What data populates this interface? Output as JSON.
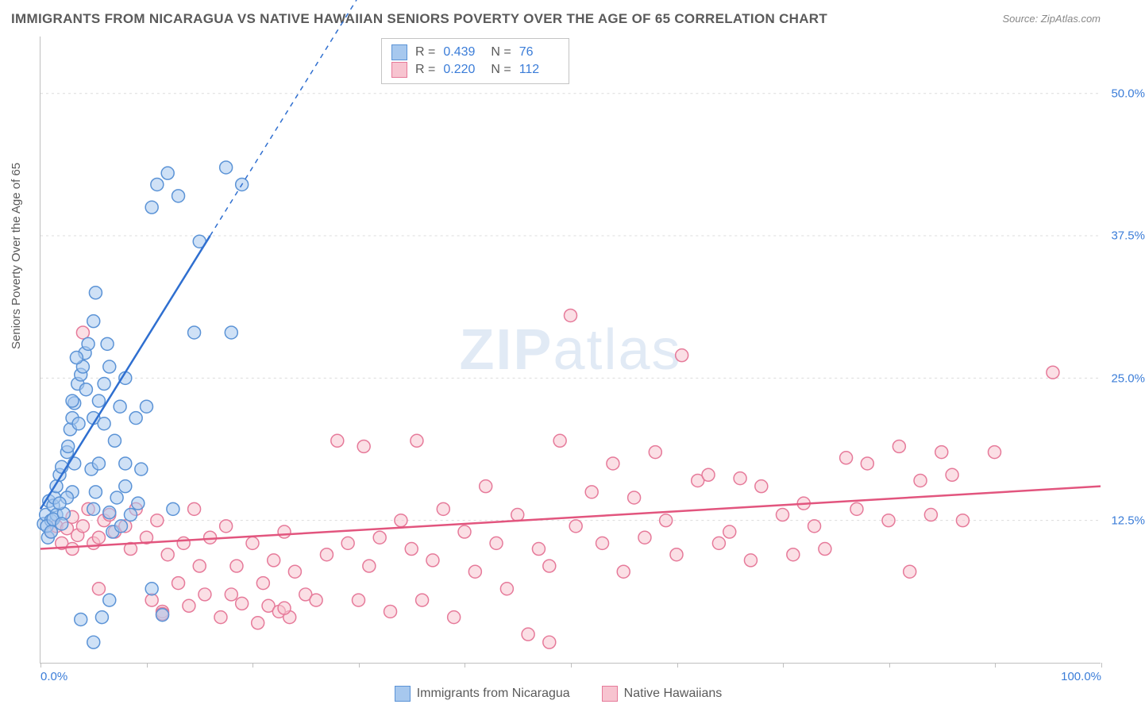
{
  "title": "IMMIGRANTS FROM NICARAGUA VS NATIVE HAWAIIAN SENIORS POVERTY OVER THE AGE OF 65 CORRELATION CHART",
  "source": "Source: ZipAtlas.com",
  "y_axis_label": "Seniors Poverty Over the Age of 65",
  "watermark_part1": "ZIP",
  "watermark_part2": "atlas",
  "chart": {
    "type": "scatter",
    "xlim": [
      0,
      100
    ],
    "ylim": [
      0,
      55
    ],
    "y_ticks": [
      12.5,
      25.0,
      37.5,
      50.0
    ],
    "y_tick_labels": [
      "12.5%",
      "25.0%",
      "37.5%",
      "50.0%"
    ],
    "x_ticks": [
      0,
      10,
      20,
      30,
      40,
      50,
      60,
      70,
      80,
      90,
      100
    ],
    "x_tick_labels": {
      "0": "0.0%",
      "100": "100.0%"
    },
    "background_color": "#ffffff",
    "grid_color": "#dcdcdc",
    "axis_color": "#bfbfbf",
    "marker_radius": 8,
    "marker_stroke_width": 1.5,
    "line_width": 2.5
  },
  "series": {
    "blue": {
      "label": "Immigrants from Nicaragua",
      "R": "0.439",
      "N": "76",
      "fill_color": "#a7c8ee",
      "stroke_color": "#5b93d6",
      "fill_opacity": 0.55,
      "trend": {
        "x1": 0,
        "y1": 13.5,
        "x2_solid": 16,
        "y2_solid": 37.5,
        "x2_dash": 31,
        "y2_dash": 60,
        "color": "#2f6fd0"
      },
      "points": [
        [
          0.3,
          12.2
        ],
        [
          0.5,
          13.0
        ],
        [
          0.7,
          11.0
        ],
        [
          0.8,
          14.2
        ],
        [
          1.0,
          12.5
        ],
        [
          1.2,
          13.8
        ],
        [
          0.6,
          12.0
        ],
        [
          1.0,
          11.5
        ],
        [
          1.3,
          14.5
        ],
        [
          1.5,
          15.5
        ],
        [
          1.8,
          16.5
        ],
        [
          2.0,
          17.2
        ],
        [
          1.5,
          13.0
        ],
        [
          1.2,
          12.6
        ],
        [
          2.2,
          13.1
        ],
        [
          2.0,
          12.2
        ],
        [
          2.5,
          18.5
        ],
        [
          2.8,
          20.5
        ],
        [
          3.0,
          21.5
        ],
        [
          2.6,
          19.0
        ],
        [
          3.2,
          22.8
        ],
        [
          3.5,
          24.5
        ],
        [
          3.8,
          25.3
        ],
        [
          3.0,
          23.0
        ],
        [
          4.0,
          26.0
        ],
        [
          4.2,
          27.2
        ],
        [
          3.6,
          21.0
        ],
        [
          3.4,
          26.8
        ],
        [
          4.5,
          28.0
        ],
        [
          4.3,
          24.0
        ],
        [
          4.8,
          17.0
        ],
        [
          5.0,
          13.5
        ],
        [
          5.2,
          15.0
        ],
        [
          5.5,
          23.0
        ],
        [
          5.0,
          21.5
        ],
        [
          5.5,
          17.5
        ],
        [
          6.0,
          24.5
        ],
        [
          6.3,
          28.0
        ],
        [
          6.5,
          26.0
        ],
        [
          6.0,
          21.0
        ],
        [
          5.2,
          32.5
        ],
        [
          6.8,
          11.5
        ],
        [
          7.0,
          19.5
        ],
        [
          7.5,
          22.5
        ],
        [
          8.0,
          25.0
        ],
        [
          8.0,
          17.5
        ],
        [
          8.5,
          13.0
        ],
        [
          7.2,
          14.5
        ],
        [
          7.6,
          12.0
        ],
        [
          9.0,
          21.5
        ],
        [
          9.5,
          17.0
        ],
        [
          8.0,
          15.5
        ],
        [
          6.5,
          13.2
        ],
        [
          9.2,
          14.0
        ],
        [
          10.0,
          22.5
        ],
        [
          10.5,
          6.5
        ],
        [
          3.8,
          3.8
        ],
        [
          5.0,
          1.8
        ],
        [
          5.8,
          4.0
        ],
        [
          6.5,
          5.5
        ],
        [
          10.5,
          40.0
        ],
        [
          11.0,
          42.0
        ],
        [
          11.5,
          4.2
        ],
        [
          12.5,
          13.5
        ],
        [
          12.0,
          43.0
        ],
        [
          13.0,
          41.0
        ],
        [
          14.5,
          29.0
        ],
        [
          15.0,
          37.0
        ],
        [
          17.5,
          43.5
        ],
        [
          18.0,
          29.0
        ],
        [
          19.0,
          42.0
        ],
        [
          5.0,
          30.0
        ],
        [
          3.2,
          17.5
        ],
        [
          3.0,
          15.0
        ],
        [
          2.5,
          14.5
        ],
        [
          1.8,
          14.0
        ]
      ]
    },
    "pink": {
      "label": "Native Hawaiians",
      "R": "0.220",
      "N": "112",
      "fill_color": "#f7c4d0",
      "stroke_color": "#e67a9a",
      "fill_opacity": 0.55,
      "trend": {
        "x1": 0,
        "y1": 10.0,
        "x2": 100,
        "y2": 15.5,
        "color": "#e2557e"
      },
      "points": [
        [
          1.0,
          11.5
        ],
        [
          1.5,
          12.0
        ],
        [
          2.0,
          10.5
        ],
        [
          2.5,
          11.8
        ],
        [
          3.0,
          12.8
        ],
        [
          3.0,
          10.0
        ],
        [
          3.5,
          11.2
        ],
        [
          4.0,
          12.0
        ],
        [
          4.5,
          13.5
        ],
        [
          4.0,
          29.0
        ],
        [
          5.0,
          10.5
        ],
        [
          5.5,
          11.0
        ],
        [
          6.0,
          12.5
        ],
        [
          5.5,
          6.5
        ],
        [
          6.5,
          13.0
        ],
        [
          7.0,
          11.5
        ],
        [
          8.0,
          12.0
        ],
        [
          8.5,
          10.0
        ],
        [
          9.0,
          13.5
        ],
        [
          10.0,
          11.0
        ],
        [
          10.5,
          5.5
        ],
        [
          11.0,
          12.5
        ],
        [
          11.5,
          4.5
        ],
        [
          12.0,
          9.5
        ],
        [
          13.0,
          7.0
        ],
        [
          13.5,
          10.5
        ],
        [
          14.0,
          5.0
        ],
        [
          14.5,
          13.5
        ],
        [
          15.0,
          8.5
        ],
        [
          15.5,
          6.0
        ],
        [
          16.0,
          11.0
        ],
        [
          17.0,
          4.0
        ],
        [
          17.5,
          12.0
        ],
        [
          18.0,
          6.0
        ],
        [
          18.5,
          8.5
        ],
        [
          19.0,
          5.2
        ],
        [
          20.0,
          10.5
        ],
        [
          20.5,
          3.5
        ],
        [
          21.0,
          7.0
        ],
        [
          21.5,
          5.0
        ],
        [
          22.0,
          9.0
        ],
        [
          22.5,
          4.5
        ],
        [
          23.0,
          11.5
        ],
        [
          23.5,
          4.0
        ],
        [
          24.0,
          8.0
        ],
        [
          25.0,
          6.0
        ],
        [
          26.0,
          5.5
        ],
        [
          27.0,
          9.5
        ],
        [
          28.0,
          19.5
        ],
        [
          29.0,
          10.5
        ],
        [
          30.0,
          5.5
        ],
        [
          30.5,
          19.0
        ],
        [
          31.0,
          8.5
        ],
        [
          32.0,
          11.0
        ],
        [
          33.0,
          4.5
        ],
        [
          34.0,
          12.5
        ],
        [
          35.0,
          10.0
        ],
        [
          35.5,
          19.5
        ],
        [
          36.0,
          5.5
        ],
        [
          37.0,
          9.0
        ],
        [
          38.0,
          13.5
        ],
        [
          39.0,
          4.0
        ],
        [
          40.0,
          11.5
        ],
        [
          41.0,
          8.0
        ],
        [
          42.0,
          15.5
        ],
        [
          43.0,
          10.5
        ],
        [
          44.0,
          6.5
        ],
        [
          45.0,
          13.0
        ],
        [
          46.0,
          2.5
        ],
        [
          47.0,
          10.0
        ],
        [
          48.0,
          8.5
        ],
        [
          49.0,
          19.5
        ],
        [
          50.0,
          30.5
        ],
        [
          50.5,
          12.0
        ],
        [
          52.0,
          15.0
        ],
        [
          53.0,
          10.5
        ],
        [
          54.0,
          17.5
        ],
        [
          55.0,
          8.0
        ],
        [
          56.0,
          14.5
        ],
        [
          57.0,
          11.0
        ],
        [
          58.0,
          18.5
        ],
        [
          59.0,
          12.5
        ],
        [
          60.0,
          9.5
        ],
        [
          60.5,
          27.0
        ],
        [
          62.0,
          16.0
        ],
        [
          63.0,
          16.5
        ],
        [
          64.0,
          10.5
        ],
        [
          65.0,
          11.5
        ],
        [
          66.0,
          16.2
        ],
        [
          67.0,
          9.0
        ],
        [
          68.0,
          15.5
        ],
        [
          70.0,
          13.0
        ],
        [
          71.0,
          9.5
        ],
        [
          72.0,
          14.0
        ],
        [
          73.0,
          12.0
        ],
        [
          74.0,
          10.0
        ],
        [
          76.0,
          18.0
        ],
        [
          77.0,
          13.5
        ],
        [
          78.0,
          17.5
        ],
        [
          80.0,
          12.5
        ],
        [
          81.0,
          19.0
        ],
        [
          82.0,
          8.0
        ],
        [
          83.0,
          16.0
        ],
        [
          84.0,
          13.0
        ],
        [
          85.0,
          18.5
        ],
        [
          86.0,
          16.5
        ],
        [
          87.0,
          12.5
        ],
        [
          90.0,
          18.5
        ],
        [
          95.5,
          25.5
        ],
        [
          48.0,
          1.8
        ],
        [
          23.0,
          4.8
        ],
        [
          11.5,
          4.3
        ]
      ]
    }
  },
  "legend_top": {
    "R_label": "R =",
    "N_label": "N ="
  }
}
